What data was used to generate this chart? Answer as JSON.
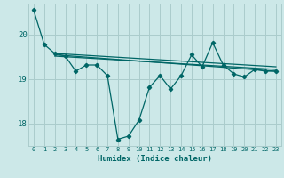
{
  "title": "",
  "xlabel": "Humidex (Indice chaleur)",
  "ylabel": "",
  "bg_color": "#cce8e8",
  "grid_color": "#aacccc",
  "line_color": "#006666",
  "xlim": [
    -0.5,
    23.5
  ],
  "ylim": [
    17.5,
    20.7
  ],
  "yticks": [
    18,
    19,
    20
  ],
  "xticks": [
    0,
    1,
    2,
    3,
    4,
    5,
    6,
    7,
    8,
    9,
    10,
    11,
    12,
    13,
    14,
    15,
    16,
    17,
    18,
    19,
    20,
    21,
    22,
    23
  ],
  "series1_x": [
    0,
    1,
    2,
    3,
    4,
    5,
    6,
    7,
    8,
    9,
    10,
    11,
    12,
    13,
    14,
    15,
    16,
    17,
    18,
    19,
    20,
    21,
    22,
    23
  ],
  "series1_y": [
    20.55,
    19.78,
    19.58,
    19.52,
    19.18,
    19.32,
    19.32,
    19.08,
    17.65,
    17.72,
    18.08,
    18.82,
    19.08,
    18.78,
    19.08,
    19.55,
    19.28,
    19.82,
    19.32,
    19.12,
    19.05,
    19.22,
    19.18,
    19.18
  ],
  "trend1_x": [
    2,
    23
  ],
  "trend1_y": [
    19.58,
    19.28
  ],
  "trend2_x": [
    2,
    23
  ],
  "trend2_y": [
    19.52,
    19.22
  ],
  "trend3_x": [
    2,
    23
  ],
  "trend3_y": [
    19.55,
    19.18
  ]
}
